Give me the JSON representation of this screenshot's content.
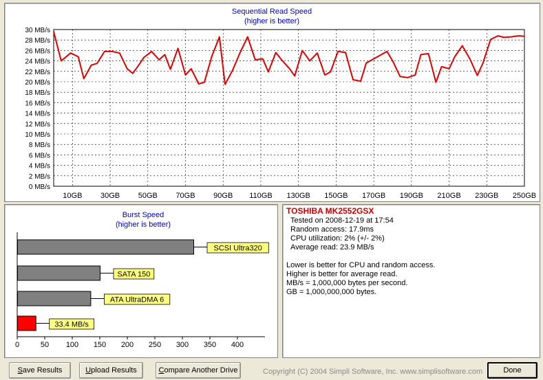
{
  "seq": {
    "title": "Sequential Read Speed",
    "subtitle": "(higher is better)"
  },
  "burst": {
    "title": "Burst Speed",
    "subtitle": "(higher is better)"
  },
  "chart_data": [
    {
      "type": "line",
      "title": "Sequential Read Speed",
      "subtitle": "(higher is better)",
      "xlabel": "",
      "ylabel": "",
      "ylim": [
        0,
        30
      ],
      "xlim": [
        0,
        250
      ],
      "y_ticks": [
        "0 MB/s",
        "2 MB/s",
        "4 MB/s",
        "6 MB/s",
        "8 MB/s",
        "10 MB/s",
        "12 MB/s",
        "14 MB/s",
        "16 MB/s",
        "18 MB/s",
        "20 MB/s",
        "22 MB/s",
        "24 MB/s",
        "26 MB/s",
        "28 MB/s",
        "30 MB/s"
      ],
      "x_ticks": [
        "10GB",
        "30GB",
        "50GB",
        "70GB",
        "90GB",
        "110GB",
        "130GB",
        "150GB",
        "170GB",
        "190GB",
        "210GB",
        "230GB",
        "250GB"
      ],
      "x_tick_values": [
        10,
        30,
        50,
        70,
        90,
        110,
        130,
        150,
        170,
        190,
        210,
        230,
        250
      ],
      "grid": true,
      "line_color": "#e00000",
      "series": [
        {
          "x": [
            0,
            4,
            9,
            13,
            16,
            20,
            23,
            27,
            31,
            35,
            39,
            42,
            45,
            48,
            52,
            56,
            59,
            62,
            66,
            70,
            73,
            77,
            80,
            84,
            88,
            91,
            95,
            99,
            103,
            107,
            111,
            114,
            118,
            121,
            125,
            128,
            132,
            136,
            140,
            144,
            147,
            151,
            155,
            159,
            163,
            166,
            170,
            173,
            177,
            180,
            184,
            188,
            192,
            195,
            199,
            203,
            206,
            210,
            213,
            217,
            221,
            225,
            228,
            232,
            236,
            239,
            243,
            247,
            250
          ],
          "y": [
            29.6,
            24.0,
            25.5,
            24.8,
            20.6,
            23.2,
            23.5,
            25.8,
            25.8,
            25.5,
            22.5,
            21.6,
            23.1,
            24.7,
            25.8,
            24.2,
            25.2,
            22.4,
            26.4,
            21.3,
            22.5,
            19.6,
            19.9,
            24.9,
            28.6,
            19.5,
            22.2,
            25.6,
            28.6,
            24.2,
            24.4,
            21.9,
            25.6,
            24.2,
            22.6,
            21.1,
            26.0,
            24.0,
            25.5,
            21.3,
            21.9,
            25.8,
            25.6,
            20.4,
            20.1,
            23.6,
            24.4,
            25.0,
            25.8,
            24.0,
            21.0,
            20.8,
            21.3,
            25.2,
            25.4,
            19.9,
            22.9,
            22.5,
            24.8,
            26.9,
            24.4,
            21.2,
            23.6,
            28.1,
            28.8,
            28.5,
            28.6,
            28.8,
            28.7
          ]
        }
      ]
    },
    {
      "type": "bar",
      "title": "Burst Speed",
      "subtitle": "(higher is better)",
      "orientation": "horizontal",
      "xlim": [
        0,
        450
      ],
      "x_ticks": [
        "0",
        "50",
        "100",
        "150",
        "200",
        "250",
        "300",
        "350",
        "400"
      ],
      "x_tick_values": [
        0,
        50,
        100,
        150,
        200,
        250,
        300,
        350,
        400
      ],
      "categories": [
        "SCSI Ultra320",
        "SATA 150",
        "ATA UltraDMA 6",
        "33.4 MB/s"
      ],
      "values": [
        320,
        150,
        133,
        33.4
      ],
      "colors": [
        "#808080",
        "#808080",
        "#808080",
        "#ff0000"
      ],
      "label_bg": "#ffff80"
    }
  ],
  "info": {
    "drive_name": "TOSHIBA MK2552GSX",
    "lines": [
      "Tested on 2008-12-19 at 17:54",
      "Random access: 17.9ms",
      "CPU utilization: 2% (+/- 2%)",
      "Average read: 23.9 MB/s"
    ],
    "notes": [
      "Lower is better for CPU and random access.",
      "Higher is better for average read.",
      "MB/s = 1,000,000 bytes per second.",
      "GB = 1,000,000,000 bytes."
    ]
  },
  "buttons": {
    "save_first": "S",
    "save_rest": "ave Results",
    "upload_first": "U",
    "upload_rest": "pload Results",
    "compare_first": "C",
    "compare_rest": "ompare Another Drive",
    "done": "Done"
  },
  "copyright": "Copyright (C) 2004 Simpli Software, Inc. www.simplisoftware.com"
}
